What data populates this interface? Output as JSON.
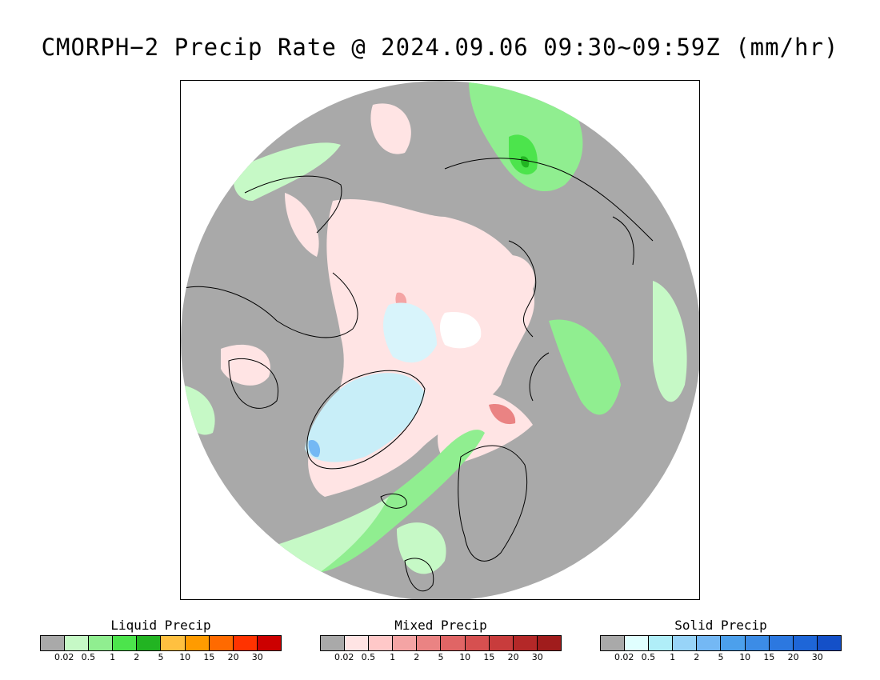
{
  "title": "CMORPH−2 Precip Rate @ 2024.09.06 09:30~09:59Z (mm/hr)",
  "map": {
    "projection": "north-polar-stereographic",
    "background_color": "#a9a9a9",
    "coastline_color": "#000000"
  },
  "legends": [
    {
      "key": "liquid",
      "title": "Liquid Precip",
      "colors": [
        "#a9a9a9",
        "#c6f9c6",
        "#90ee90",
        "#4ce44c",
        "#22b422",
        "#ffc040",
        "#ff9b00",
        "#ff6a00",
        "#ff3300",
        "#cc0000"
      ],
      "tick_labels": [
        "0.02",
        "0.5",
        "1",
        "2",
        "5",
        "10",
        "15",
        "20",
        "30"
      ]
    },
    {
      "key": "mixed",
      "title": "Mixed Precip",
      "colors": [
        "#a9a9a9",
        "#ffe4e4",
        "#ffc8c8",
        "#f4a4a4",
        "#ea8383",
        "#e06565",
        "#d65050",
        "#c83c3c",
        "#b42828",
        "#a01c1c"
      ],
      "tick_labels": [
        "0.02",
        "0.5",
        "1",
        "2",
        "5",
        "10",
        "15",
        "20",
        "30"
      ]
    },
    {
      "key": "solid",
      "title": "Solid Precip",
      "colors": [
        "#a9a9a9",
        "#e0ffff",
        "#b0eef8",
        "#98d4f8",
        "#74b8f4",
        "#4ca0ec",
        "#3c8ce6",
        "#2c78e0",
        "#1e66d8",
        "#1450c8"
      ],
      "tick_labels": [
        "0.02",
        "0.5",
        "1",
        "2",
        "5",
        "10",
        "15",
        "20",
        "30"
      ]
    }
  ]
}
